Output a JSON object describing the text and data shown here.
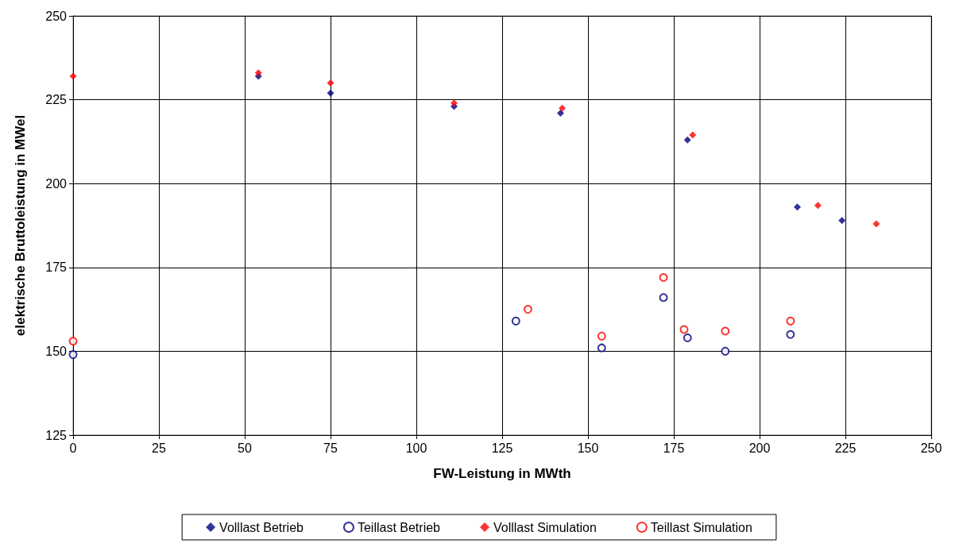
{
  "chart_data": {
    "type": "scatter",
    "xlabel": "FW-Leistung in MWth",
    "ylabel": "elektrische Bruttoleistung in MWel",
    "xlim": [
      0,
      250
    ],
    "xticks": [
      0,
      25,
      50,
      75,
      100,
      125,
      150,
      175,
      200,
      225,
      250
    ],
    "ylim": [
      125,
      250
    ],
    "yticks": [
      125,
      150,
      175,
      200,
      225,
      250
    ],
    "grid": true,
    "legend": "bottom",
    "series": [
      {
        "name": "Volllast Betrieb",
        "color": "#000080",
        "marker": "diamond",
        "x": [
          54,
          75,
          111,
          142,
          179,
          211,
          224
        ],
        "values": [
          232,
          227,
          223,
          221,
          213,
          193,
          189
        ]
      },
      {
        "name": "Teillast Betrieb",
        "color": "#000080",
        "marker": "circle",
        "x": [
          0,
          129,
          154,
          172,
          179,
          190,
          209
        ],
        "values": [
          149,
          159,
          151,
          166,
          154,
          150,
          155
        ]
      },
      {
        "name": "Volllast Simulation",
        "color": "#ff0000",
        "marker": "diamond",
        "x": [
          0,
          54,
          75,
          111,
          142.5,
          180.5,
          217,
          234
        ],
        "values": [
          232,
          233,
          230,
          224,
          222.5,
          214.5,
          193.5,
          188
        ]
      },
      {
        "name": "Teillast Simulation",
        "color": "#ff0000",
        "marker": "circle",
        "x": [
          0,
          132.5,
          154,
          172,
          178,
          190,
          209
        ],
        "values": [
          153,
          162.5,
          154.5,
          172,
          156.5,
          156,
          159
        ]
      }
    ]
  }
}
